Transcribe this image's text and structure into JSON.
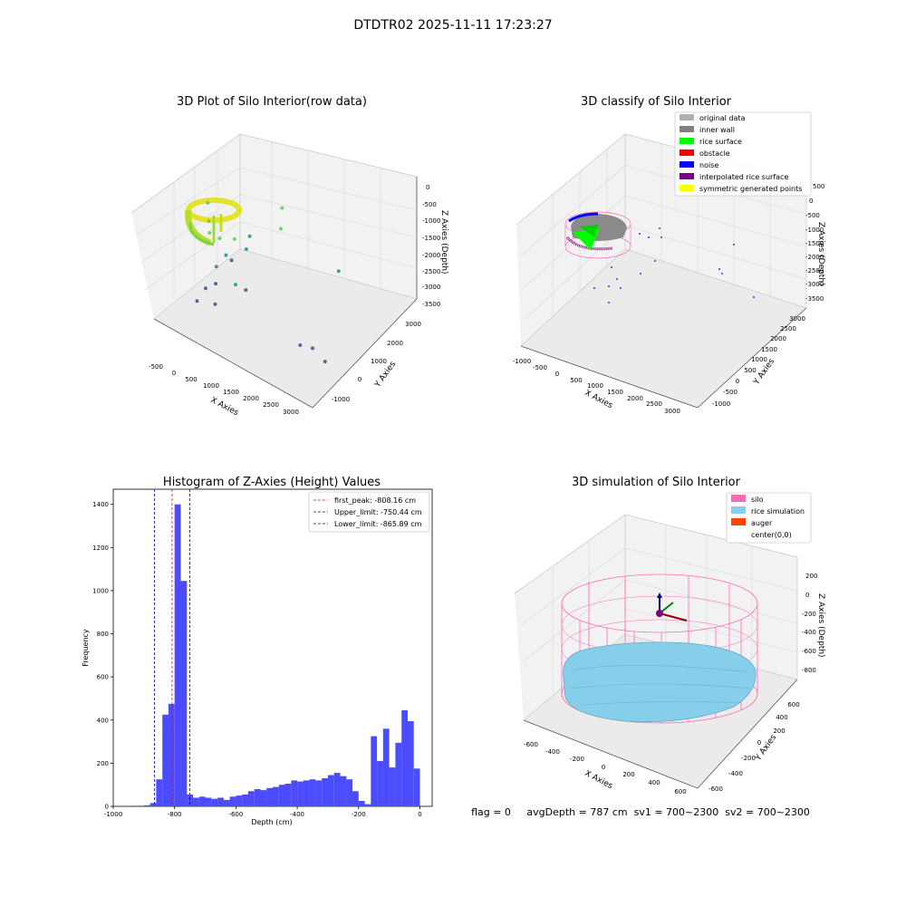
{
  "suptitle": "DTDTR02 2025-11-11 17:23:27",
  "status_line": "flag = 0     avgDepth = 787 cm  sv1 = 700~2300  sv2 = 700~2300",
  "chart_data": [
    {
      "type": "scatter3d",
      "title": "3D Plot of Silo Interior(row data)",
      "xlabel": "X Axies",
      "ylabel": "Y Axies",
      "zlabel": "Z Axies (Depth)",
      "xticks": [
        "-500",
        "0",
        "500",
        "1000",
        "1500",
        "2000",
        "2500",
        "3000"
      ],
      "yticks": [
        "-1000",
        "0",
        "1000",
        "2000",
        "3000"
      ],
      "zticks": [
        "0",
        "-500",
        "-1000",
        "-1500",
        "-2000",
        "-2500",
        "-3000",
        "-3500"
      ],
      "xlim": [
        -800,
        3200
      ],
      "ylim": [
        -1300,
        3300
      ],
      "zlim": [
        -3800,
        200
      ],
      "colormap": [
        "#440154",
        "#3b528b",
        "#21918c",
        "#5ec962",
        "#fde725"
      ],
      "points": [
        {
          "x": -300,
          "y": 200,
          "z": -1100
        },
        {
          "x": -100,
          "y": -100,
          "z": -1300
        },
        {
          "x": 200,
          "y": -600,
          "z": -1100
        },
        {
          "x": 400,
          "y": -500,
          "z": -1200
        },
        {
          "x": 600,
          "y": -200,
          "z": -1300
        },
        {
          "x": 700,
          "y": 300,
          "z": -1500
        },
        {
          "x": 500,
          "y": -400,
          "z": -1700
        },
        {
          "x": 900,
          "y": -200,
          "z": -1400
        },
        {
          "x": 300,
          "y": 200,
          "z": -2400
        },
        {
          "x": 200,
          "y": -300,
          "z": -2300
        },
        {
          "x": 100,
          "y": -600,
          "z": -2800
        },
        {
          "x": 300,
          "y": -500,
          "z": -2600
        },
        {
          "x": 800,
          "y": -500,
          "z": -2300
        },
        {
          "x": 1000,
          "y": -400,
          "z": -2400
        },
        {
          "x": 0,
          "y": -800,
          "z": -3100
        },
        {
          "x": 400,
          "y": -700,
          "z": -3000
        },
        {
          "x": 2600,
          "y": 900,
          "z": -1700
        },
        {
          "x": 2600,
          "y": -800,
          "z": -2700
        },
        {
          "x": 2800,
          "y": -600,
          "z": -2800
        },
        {
          "x": 3000,
          "y": -400,
          "z": -3200
        },
        {
          "x": 1200,
          "y": 800,
          "z": -1300
        },
        {
          "x": 1000,
          "y": 1200,
          "z": -1100
        }
      ]
    },
    {
      "type": "scatter3d",
      "title": "3D classify of Silo Interior",
      "xlabel": "X Axies",
      "ylabel": "Y Axies",
      "zlabel": "Z Axies (Depth)",
      "xticks": [
        "-1000",
        "-500",
        "0",
        "500",
        "1000",
        "1500",
        "2000",
        "2500",
        "3000"
      ],
      "yticks": [
        "-1000",
        "-500",
        "0",
        "500",
        "1000",
        "1500",
        "2000",
        "2500",
        "3000"
      ],
      "zticks": [
        "500",
        "0",
        "-500",
        "-1000",
        "-1500",
        "-2000",
        "-2500",
        "-3000",
        "-3500"
      ],
      "legend_position": "upper right",
      "legend": [
        {
          "label": "original data",
          "color": "#b0b0b0"
        },
        {
          "label": "inner wall",
          "color": "#808080"
        },
        {
          "label": "rice surface",
          "color": "#00ff00"
        },
        {
          "label": "obstacle",
          "color": "#ff0000"
        },
        {
          "label": "noise",
          "color": "#0000ff"
        },
        {
          "label": "interpolated rice surface",
          "color": "#800080"
        },
        {
          "label": "symmetric generated points",
          "color": "#ffff00"
        }
      ]
    },
    {
      "type": "bar",
      "title": "Histogram of Z-Axies (Height) Values",
      "xlabel": "Depth (cm)",
      "ylabel": "Frequency",
      "xlim": [
        -1000,
        40
      ],
      "ylim": [
        0,
        1470
      ],
      "xticks": [
        -1000,
        -800,
        -600,
        -400,
        -200,
        0
      ],
      "yticks": [
        0,
        200,
        400,
        600,
        800,
        1000,
        1200,
        1400
      ],
      "bar_color": "#4b4bff",
      "bin_width": 20,
      "bins_start": [
        -940,
        -920,
        -900,
        -880,
        -860,
        -840,
        -820,
        -800,
        -780,
        -760,
        -740,
        -720,
        -700,
        -680,
        -660,
        -640,
        -620,
        -600,
        -580,
        -560,
        -540,
        -520,
        -500,
        -480,
        -460,
        -440,
        -420,
        -400,
        -380,
        -360,
        -340,
        -320,
        -300,
        -280,
        -260,
        -240,
        -220,
        -200,
        -180,
        -160,
        -140,
        -120,
        -100,
        -80,
        -60,
        -40,
        -20
      ],
      "values": [
        3,
        3,
        5,
        15,
        125,
        425,
        475,
        1400,
        1045,
        55,
        40,
        45,
        40,
        35,
        40,
        30,
        45,
        50,
        55,
        70,
        80,
        75,
        85,
        90,
        100,
        105,
        120,
        115,
        120,
        125,
        120,
        130,
        145,
        155,
        140,
        125,
        70,
        25,
        10,
        325,
        210,
        360,
        180,
        295,
        445,
        395,
        175
      ],
      "vlines": [
        {
          "label": "first_peak: -808.16 cm",
          "x": -808.16,
          "color": "#ff0000"
        },
        {
          "label": "Upper_limit: -750.44 cm",
          "x": -750.44,
          "color": "#0000b0"
        },
        {
          "label": "Lower_limit: -865.89 cm",
          "x": -865.89,
          "color": "#0000b0"
        }
      ],
      "legend_position": "upper right"
    },
    {
      "type": "surface3d",
      "title": "3D simulation of Silo Interior",
      "xlabel": "X Axies",
      "ylabel": "Y Axies",
      "zlabel": "Z Axies (Depth)",
      "xticks": [
        "-600",
        "-400",
        "-200",
        "0",
        "200",
        "400",
        "600"
      ],
      "yticks": [
        "-600",
        "-400",
        "-200",
        "0",
        "200",
        "400",
        "600"
      ],
      "zticks": [
        "200",
        "0",
        "-200",
        "-400",
        "-600",
        "-800"
      ],
      "legend_position": "upper right",
      "legend": [
        {
          "label": "silo",
          "color": "#ff69b4"
        },
        {
          "label": "rice simulation",
          "color": "#87ceeb"
        },
        {
          "label": "auger",
          "color": "#ff4500"
        },
        {
          "label": "center(0,0)",
          "color": ""
        }
      ]
    }
  ]
}
